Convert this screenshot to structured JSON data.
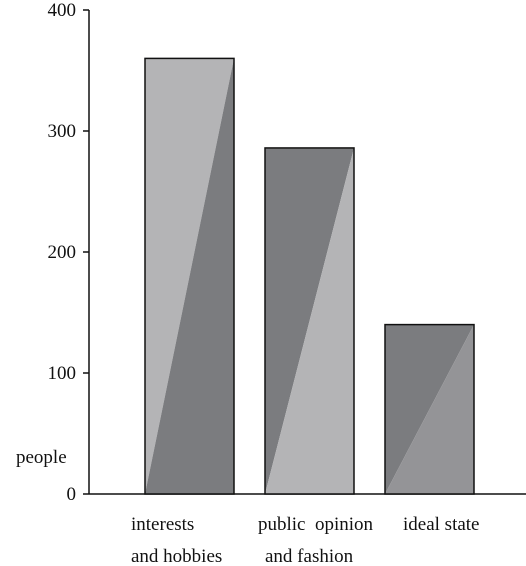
{
  "chart_data": {
    "type": "bar",
    "categories": [
      {
        "id": "interests-and-hobbies",
        "lines": [
          "interests",
          "and hobbies"
        ]
      },
      {
        "id": "public-opinion-and-fashion",
        "lines": [
          "public  opinion",
          "and fashion"
        ]
      },
      {
        "id": "ideal-state",
        "lines": [
          "ideal state",
          ""
        ]
      }
    ],
    "values": [
      360,
      286,
      140
    ],
    "ylabel": "people",
    "ylim": [
      0,
      400
    ],
    "yticks": [
      "0",
      "100",
      "200",
      "300",
      "400"
    ],
    "grid": false,
    "legend": "none"
  },
  "colors": {
    "bar_light": "#b4b4b6",
    "bar_dark": "#7b7c7f",
    "bar_medium": "#949497",
    "axis": "#111111",
    "background": "#ffffff"
  }
}
